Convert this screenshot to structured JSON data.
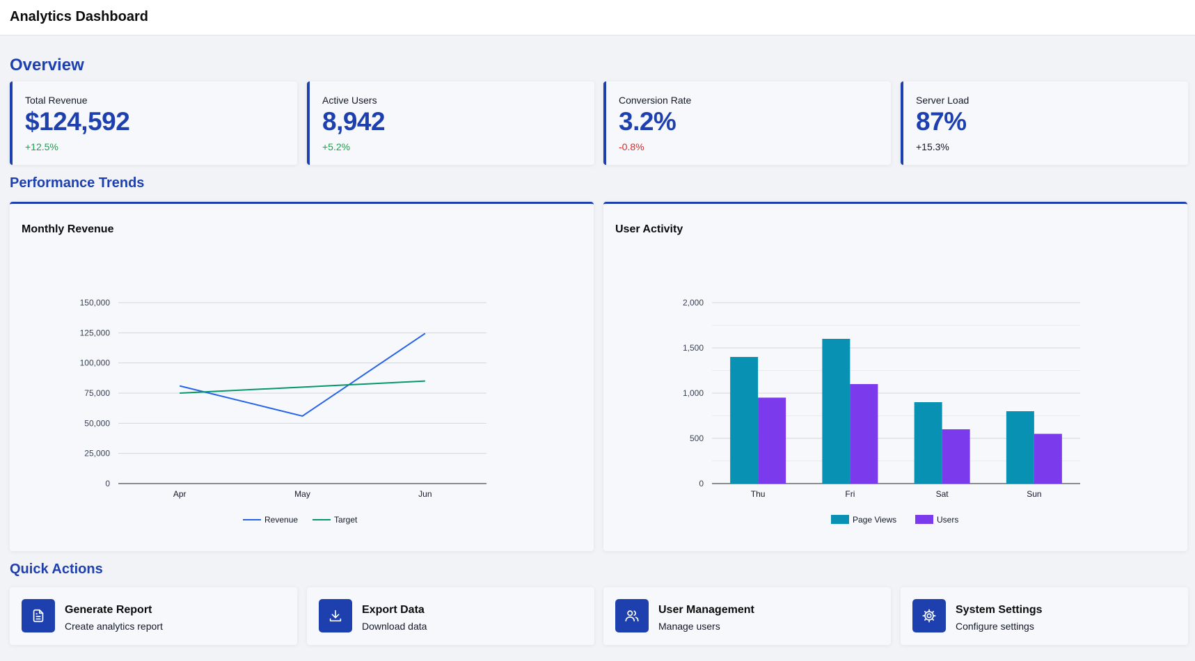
{
  "header": {
    "title": "Analytics Dashboard"
  },
  "sections": {
    "overview": "Overview",
    "performance": "Performance Trends",
    "quick_actions": "Quick Actions"
  },
  "colors": {
    "accent": "#1e40af",
    "positive": "#16a34a",
    "negative": "#dc2626",
    "neutral": "#111827",
    "revenue": "#2563eb",
    "target": "#059669",
    "page_views": "#0891b2",
    "users": "#7c3aed"
  },
  "stats": [
    {
      "label": "Total Revenue",
      "value": "$124,592",
      "change": "+12.5%",
      "trend": "positive"
    },
    {
      "label": "Active Users",
      "value": "8,942",
      "change": "+5.2%",
      "trend": "positive"
    },
    {
      "label": "Conversion Rate",
      "value": "3.2%",
      "change": "-0.8%",
      "trend": "negative"
    },
    {
      "label": "Server Load",
      "value": "87%",
      "change": "+15.3%",
      "trend": "neutral"
    }
  ],
  "charts": {
    "revenue_title": "Monthly Revenue",
    "activity_title": "User Activity"
  },
  "chart_data": [
    {
      "type": "line",
      "title": "Monthly Revenue",
      "categories": [
        "Apr",
        "May",
        "Jun"
      ],
      "ylim": [
        0,
        150000
      ],
      "yticks": [
        0,
        25000,
        50000,
        75000,
        100000,
        125000,
        150000
      ],
      "ytick_labels": [
        "0",
        "25,000",
        "50,000",
        "75,000",
        "100,000",
        "125,000",
        "150,000"
      ],
      "grid": true,
      "legend": "bottom",
      "series": [
        {
          "name": "Revenue",
          "values": [
            81000,
            56000,
            124500
          ],
          "color": "#2563eb"
        },
        {
          "name": "Target",
          "values": [
            75000,
            80000,
            85000
          ],
          "color": "#059669"
        }
      ]
    },
    {
      "type": "bar",
      "title": "User Activity",
      "categories": [
        "Thu",
        "Fri",
        "Sat",
        "Sun"
      ],
      "ylim": [
        0,
        2000
      ],
      "yticks": [
        0,
        500,
        1000,
        1500,
        2000
      ],
      "ytick_labels": [
        "0",
        "500",
        "1,000",
        "1,500",
        "2,000"
      ],
      "grid": true,
      "legend": "bottom",
      "series": [
        {
          "name": "Page Views",
          "values": [
            1400,
            1600,
            900,
            800
          ],
          "color": "#0891b2"
        },
        {
          "name": "Users",
          "values": [
            950,
            1100,
            600,
            550
          ],
          "color": "#7c3aed"
        }
      ]
    }
  ],
  "actions": [
    {
      "title": "Generate Report",
      "desc": "Create analytics report",
      "icon": "document-icon"
    },
    {
      "title": "Export Data",
      "desc": "Download data",
      "icon": "download-icon"
    },
    {
      "title": "User Management",
      "desc": "Manage users",
      "icon": "users-icon"
    },
    {
      "title": "System Settings",
      "desc": "Configure settings",
      "icon": "gear-icon"
    }
  ]
}
